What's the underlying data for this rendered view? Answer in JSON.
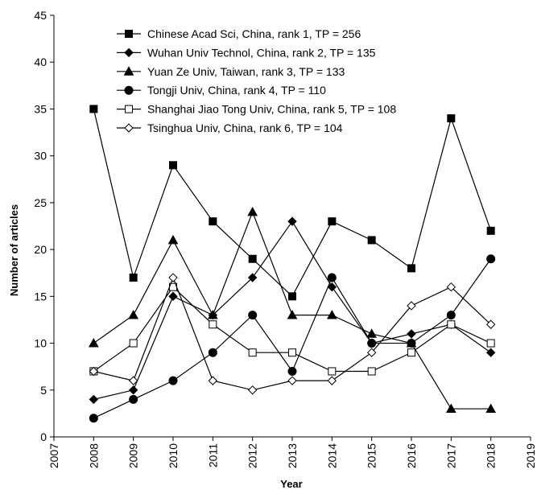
{
  "chart_data": {
    "type": "line",
    "xlabel": "Year",
    "ylabel": "Number of articles",
    "xlim": [
      2007,
      2019
    ],
    "ylim": [
      0,
      45
    ],
    "x_ticks": [
      "2007",
      "2008",
      "2009",
      "2010",
      "2011",
      "2012",
      "2013",
      "2014",
      "2015",
      "2016",
      "2017",
      "2018",
      "2019"
    ],
    "y_ticks": [
      "0",
      "5",
      "10",
      "15",
      "20",
      "25",
      "30",
      "35",
      "40",
      "45"
    ],
    "grid": false,
    "legend_position": "top-left",
    "x": [
      2008,
      2009,
      2010,
      2011,
      2012,
      2013,
      2014,
      2015,
      2016,
      2017,
      2018
    ],
    "series": [
      {
        "name": "Chinese Acad Sci, China, rank 1, TP = 256",
        "marker": "square-filled",
        "values": [
          35,
          17,
          29,
          23,
          19,
          15,
          23,
          21,
          18,
          34,
          22
        ]
      },
      {
        "name": "Wuhan Univ Technol, China, rank 2, TP = 135",
        "marker": "diamond-filled",
        "values": [
          4,
          5,
          15,
          13,
          17,
          23,
          16,
          10,
          11,
          12,
          9
        ]
      },
      {
        "name": "Yuan Ze Univ, Taiwan, rank 3, TP = 133",
        "marker": "triangle-filled",
        "values": [
          10,
          13,
          21,
          13,
          24,
          13,
          13,
          11,
          10,
          3,
          3
        ]
      },
      {
        "name": "Tongji Univ, China, rank 4, TP = 110",
        "marker": "circle-filled",
        "values": [
          2,
          4,
          6,
          9,
          13,
          7,
          17,
          10,
          10,
          13,
          19
        ]
      },
      {
        "name": "Shanghai Jiao Tong Univ, China, rank 5, TP = 108",
        "marker": "square-open",
        "values": [
          7,
          10,
          16,
          12,
          9,
          9,
          7,
          7,
          9,
          12,
          10
        ]
      },
      {
        "name": "Tsinghua Univ, China, rank 6, TP = 104",
        "marker": "diamond-open",
        "values": [
          7,
          6,
          17,
          6,
          5,
          6,
          6,
          9,
          14,
          16,
          12
        ]
      }
    ]
  }
}
